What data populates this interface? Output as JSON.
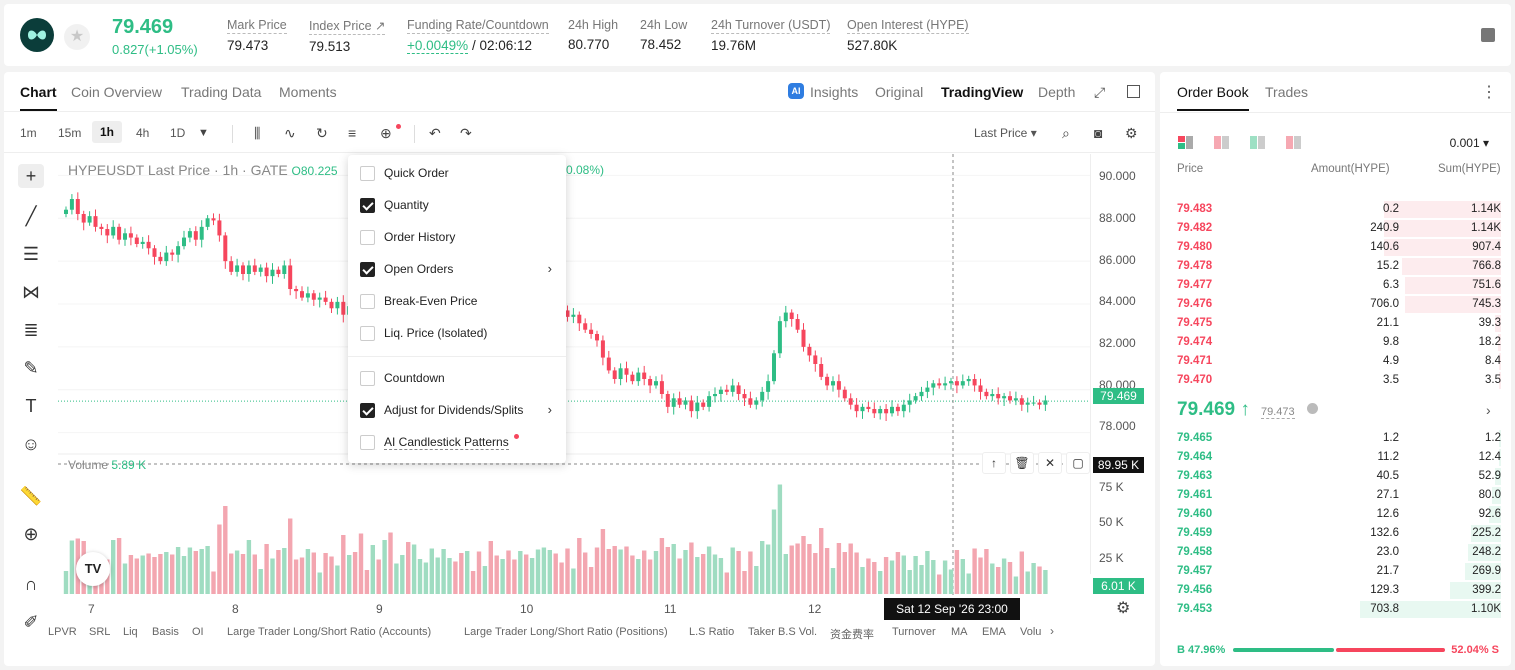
{
  "header": {
    "last_price": "79.469",
    "change": "0.827(+1.05%)",
    "stats": [
      {
        "label": "Mark Price",
        "value": "79.473"
      },
      {
        "label": "Index Price ↗",
        "value": "79.513"
      },
      {
        "label": "Funding Rate/Countdown",
        "value_green": "+0.0049%",
        "value": " / 02:06:12"
      },
      {
        "label": "24h High",
        "value": "80.770"
      },
      {
        "label": "24h Low",
        "value": "78.452"
      },
      {
        "label": "24h Turnover (USDT)",
        "value": "19.76M"
      },
      {
        "label": "Open Interest (HYPE)",
        "value": "527.80K"
      }
    ]
  },
  "chart_tabs": [
    "Chart",
    "Coin Overview",
    "Trading Data",
    "Moments"
  ],
  "view_tabs": [
    "Insights",
    "Original",
    "TradingView",
    "Depth"
  ],
  "timeframes": [
    "1m",
    "15m",
    "1h",
    "4h",
    "1D"
  ],
  "last_price_select": "Last Price ▾",
  "chart_title": {
    "text": "HYPEUSDT Last Price · 1h · GATE",
    "ohl": "O80.225",
    "pct": "0.08%)"
  },
  "volume_label": {
    "label": "Volume",
    "value": "5.89 K"
  },
  "time_tag": "Sat 12 Sep '26   23:00",
  "price_tag": "79.469",
  "vol_tag_top": "89.95 K",
  "vol_tag_bottom": "6.01 K",
  "bottom_indicators": [
    "LPVR",
    "SRL",
    "Liq",
    "Basis",
    "OI",
    "Large Trader Long/Short Ratio (Accounts)",
    "Large Trader Long/Short Ratio (Positions)",
    "L.S Ratio",
    "Taker B.S Vol.",
    "资金费率",
    "Turnover",
    "MA",
    "EMA",
    "Volu"
  ],
  "menu": [
    {
      "label": "Quick Order",
      "checked": false
    },
    {
      "label": "Quantity",
      "checked": true
    },
    {
      "label": "Order History",
      "checked": false
    },
    {
      "label": "Open Orders",
      "checked": true,
      "arrow": true
    },
    {
      "label": "Break-Even Price",
      "checked": false
    },
    {
      "label": "Liq. Price (Isolated)",
      "checked": false
    },
    {
      "label": "Countdown",
      "checked": false
    },
    {
      "label": "Adjust for Dividends/Splits",
      "checked": true,
      "arrow": true
    },
    {
      "label": "AI Candlestick Patterns",
      "checked": false
    }
  ],
  "orderbook": {
    "tabs": [
      "Order Book",
      "Trades"
    ],
    "tick": "0.001 ▾",
    "headers": [
      "Price",
      "Amount(HYPE)",
      "Sum(HYPE)"
    ],
    "asks": [
      {
        "price": "79.483",
        "amount": "0.2",
        "sum": "1.14K",
        "depth": 0.39
      },
      {
        "price": "79.482",
        "amount": "240.9",
        "sum": "1.14K",
        "depth": 0.39
      },
      {
        "price": "79.480",
        "amount": "140.6",
        "sum": "907.4",
        "depth": 0.39
      },
      {
        "price": "79.478",
        "amount": "15.2",
        "sum": "766.8",
        "depth": 0.33
      },
      {
        "price": "79.477",
        "amount": "6.3",
        "sum": "751.6",
        "depth": 0.32
      },
      {
        "price": "79.476",
        "amount": "706.0",
        "sum": "745.3",
        "depth": 0.32
      },
      {
        "price": "79.475",
        "amount": "21.1",
        "sum": "39.3",
        "depth": 0.02
      },
      {
        "price": "79.474",
        "amount": "9.8",
        "sum": "18.2",
        "depth": 0.01
      },
      {
        "price": "79.471",
        "amount": "4.9",
        "sum": "8.4",
        "depth": 0.005
      },
      {
        "price": "79.470",
        "amount": "3.5",
        "sum": "3.5",
        "depth": 0.002
      }
    ],
    "mid_price": "79.469 ↑",
    "mark": "79.473",
    "bids": [
      {
        "price": "79.465",
        "amount": "1.2",
        "sum": "1.2",
        "depth": 0.001
      },
      {
        "price": "79.464",
        "amount": "11.2",
        "sum": "12.4",
        "depth": 0.005
      },
      {
        "price": "79.463",
        "amount": "40.5",
        "sum": "52.9",
        "depth": 0.02
      },
      {
        "price": "79.461",
        "amount": "27.1",
        "sum": "80.0",
        "depth": 0.03
      },
      {
        "price": "79.460",
        "amount": "12.6",
        "sum": "92.6",
        "depth": 0.04
      },
      {
        "price": "79.459",
        "amount": "132.6",
        "sum": "225.2",
        "depth": 0.1
      },
      {
        "price": "79.458",
        "amount": "23.0",
        "sum": "248.2",
        "depth": 0.11
      },
      {
        "price": "79.457",
        "amount": "21.7",
        "sum": "269.9",
        "depth": 0.12
      },
      {
        "price": "79.456",
        "amount": "129.3",
        "sum": "399.2",
        "depth": 0.17
      },
      {
        "price": "79.453",
        "amount": "703.8",
        "sum": "1.10K",
        "depth": 0.47
      }
    ],
    "buy_pct": "B 47.96%",
    "sell_pct": "52.04% S",
    "buy_ratio": 0.4796
  },
  "chart_data": {
    "type": "candlestick",
    "price_axis": [
      "90.000",
      "88.000",
      "86.000",
      "84.000",
      "82.000",
      "80.000",
      "78.000"
    ],
    "volume_axis": [
      "75 K",
      "50 K",
      "25 K"
    ],
    "x_labels": [
      "7",
      "8",
      "9",
      "10",
      "11",
      "12"
    ],
    "ylim": [
      77,
      91
    ],
    "closes": [
      88.4,
      88.9,
      88.2,
      87.8,
      88.1,
      87.6,
      87.5,
      87.2,
      87.6,
      87.0,
      87.3,
      87.1,
      86.8,
      86.9,
      86.6,
      86.2,
      86.0,
      86.4,
      86.3,
      86.7,
      87.1,
      87.4,
      87.0,
      87.6,
      88.0,
      87.9,
      87.2,
      86.0,
      85.5,
      85.8,
      85.4,
      85.8,
      85.5,
      85.7,
      85.3,
      85.6,
      85.4,
      85.8,
      84.7,
      84.6,
      84.3,
      84.5,
      84.2,
      84.3,
      84.1,
      83.8,
      84.1,
      83.5,
      83.9,
      83.7,
      83.0,
      82.8,
      83.2,
      82.9,
      83.3,
      82.6,
      82.9,
      83.1,
      82.5,
      82.8,
      83.0,
      83.3,
      83.6,
      83.9,
      84.1,
      84.3,
      84.0,
      83.8,
      84.2,
      84.0,
      83.7,
      83.9,
      83.5,
      83.2,
      83.6,
      83.3,
      83.0,
      83.2,
      82.9,
      83.3,
      83.6,
      84.1,
      84.3,
      84.0,
      83.7,
      83.4,
      83.5,
      83.1,
      82.8,
      82.6,
      82.3,
      81.5,
      80.9,
      80.5,
      81.0,
      80.7,
      80.4,
      80.8,
      80.5,
      80.2,
      80.4,
      79.8,
      79.2,
      79.6,
      79.3,
      79.5,
      79.0,
      79.4,
      79.2,
      79.7,
      79.8,
      80.0,
      79.9,
      80.2,
      79.8,
      79.6,
      79.3,
      79.5,
      79.9,
      80.4,
      81.7,
      83.2,
      83.6,
      83.3,
      82.8,
      82.0,
      81.6,
      81.2,
      80.6,
      80.2,
      80.4,
      80.0,
      79.6,
      79.3,
      79.0,
      79.2,
      79.1,
      78.9,
      79.1,
      78.9,
      79.2,
      79.0,
      79.3,
      79.5,
      79.7,
      79.9,
      80.1,
      80.3,
      80.2,
      80.3,
      80.4,
      80.2,
      80.4,
      80.5,
      80.2,
      79.9,
      79.7,
      79.8,
      79.6,
      79.7,
      79.5,
      79.6,
      79.3,
      79.4,
      79.4,
      79.3,
      79.5
    ]
  }
}
